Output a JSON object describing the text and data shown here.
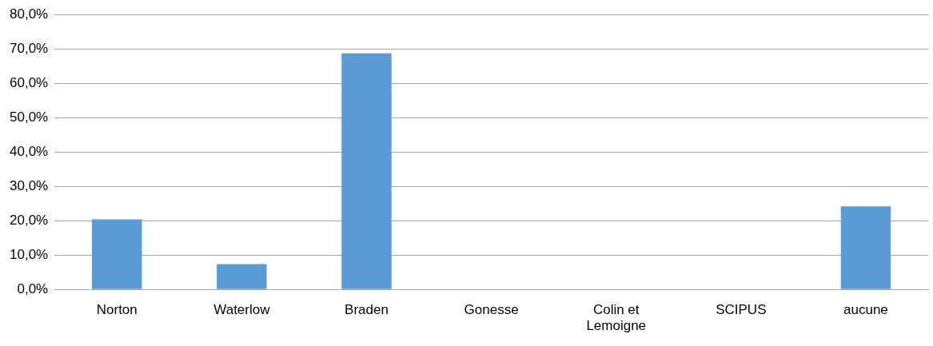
{
  "chart_data": {
    "type": "bar",
    "categories": [
      "Norton",
      "Waterlow",
      "Braden",
      "Gonesse",
      "Colin et Lemoigne",
      "SCIPUS",
      "aucune"
    ],
    "values": [
      20.4,
      7.4,
      68.7,
      0,
      0,
      0,
      24.2
    ],
    "color": "#5b9bd5",
    "ylim": [
      0,
      80
    ],
    "yticks": [
      {
        "value": 0,
        "label": "0,0%"
      },
      {
        "value": 10,
        "label": "10,0%"
      },
      {
        "value": 20,
        "label": "20,0%"
      },
      {
        "value": 30,
        "label": "30,0%"
      },
      {
        "value": 40,
        "label": "40,0%"
      },
      {
        "value": 50,
        "label": "50,0%"
      },
      {
        "value": 60,
        "label": "60,0%"
      },
      {
        "value": 70,
        "label": "70,0%"
      },
      {
        "value": 80,
        "label": "80,0%"
      }
    ],
    "grid": "y"
  }
}
